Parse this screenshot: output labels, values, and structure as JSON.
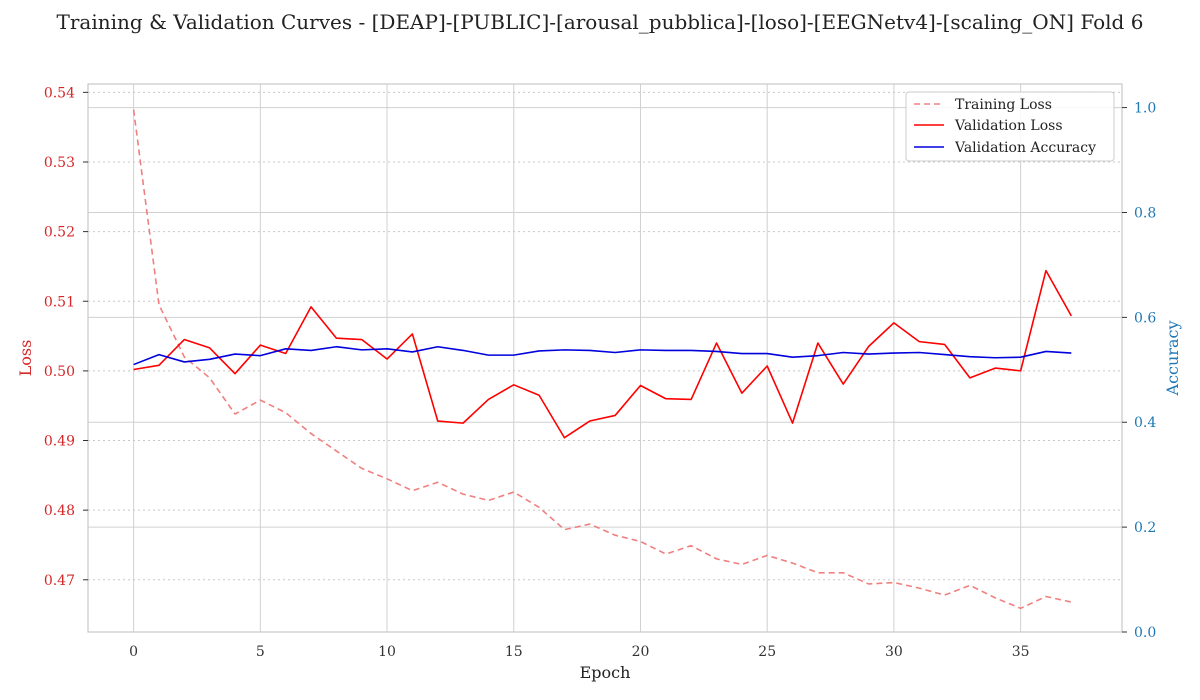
{
  "chart_data": {
    "type": "line",
    "title": "Training & Validation Curves - [DEAP]-[PUBLIC]-[arousal_pubblica]-[loso]-[EEGNetv4]-[scaling_ON] Fold 6",
    "xlabel": "Epoch",
    "ylabel_left": "Loss",
    "ylabel_right": "Accuracy",
    "xlim": [
      -1.8,
      39
    ],
    "ylim_left": [
      0.4625,
      0.5412
    ],
    "ylim_right": [
      0.0,
      1.045
    ],
    "x_ticks": [
      0,
      5,
      10,
      15,
      20,
      25,
      30,
      35
    ],
    "y_left_ticks": [
      0.47,
      0.48,
      0.49,
      0.5,
      0.51,
      0.52,
      0.53,
      0.54
    ],
    "y_left_tick_labels": [
      "0.47",
      "0.48",
      "0.49",
      "0.50",
      "0.51",
      "0.52",
      "0.53",
      "0.54"
    ],
    "y_right_ticks": [
      0.0,
      0.2,
      0.4,
      0.6,
      0.8,
      1.0
    ],
    "y_right_tick_labels": [
      "0.0",
      "0.2",
      "0.4",
      "0.6",
      "0.8",
      "1.0"
    ],
    "grid": true,
    "legend_position": "top-right",
    "x": [
      0,
      1,
      2,
      3,
      4,
      5,
      6,
      7,
      8,
      9,
      10,
      11,
      12,
      13,
      14,
      15,
      16,
      17,
      18,
      19,
      20,
      21,
      22,
      23,
      24,
      25,
      26,
      27,
      28,
      29,
      30,
      31,
      32,
      33,
      34,
      35,
      36,
      37
    ],
    "series": [
      {
        "name": "Training Loss",
        "axis": "left",
        "color": "#f08080",
        "style": "dashed",
        "values": [
          0.5375,
          0.5095,
          0.502,
          0.499,
          0.4938,
          0.4958,
          0.494,
          0.491,
          0.4885,
          0.486,
          0.4845,
          0.4828,
          0.484,
          0.4823,
          0.4814,
          0.4826,
          0.4804,
          0.4772,
          0.478,
          0.4764,
          0.4755,
          0.4737,
          0.4749,
          0.473,
          0.4722,
          0.4735,
          0.4724,
          0.471,
          0.471,
          0.4694,
          0.4696,
          0.4688,
          0.4678,
          0.4692,
          0.4674,
          0.4659,
          0.4676,
          0.4668
        ]
      },
      {
        "name": "Validation Loss",
        "axis": "left",
        "color": "#ff0000",
        "style": "solid",
        "values": [
          0.5002,
          0.5008,
          0.5045,
          0.5033,
          0.4996,
          0.5037,
          0.5025,
          0.5092,
          0.5047,
          0.5045,
          0.5017,
          0.5053,
          0.4928,
          0.4925,
          0.4959,
          0.498,
          0.4965,
          0.4904,
          0.4928,
          0.4936,
          0.4979,
          0.496,
          0.4959,
          0.504,
          0.4968,
          0.5007,
          0.4925,
          0.504,
          0.4981,
          0.5035,
          0.5069,
          0.5042,
          0.5038,
          0.499,
          0.5004,
          0.5,
          0.5144,
          0.5079
        ]
      },
      {
        "name": "Validation Accuracy",
        "axis": "right",
        "color": "#0000dd",
        "style": "solid",
        "values": [
          0.51,
          0.529,
          0.515,
          0.52,
          0.53,
          0.527,
          0.54,
          0.537,
          0.544,
          0.538,
          0.54,
          0.534,
          0.544,
          0.537,
          0.528,
          0.528,
          0.536,
          0.538,
          0.537,
          0.533,
          0.538,
          0.537,
          0.537,
          0.535,
          0.531,
          0.531,
          0.524,
          0.527,
          0.533,
          0.53,
          0.532,
          0.533,
          0.529,
          0.525,
          0.523,
          0.524,
          0.535,
          0.532
        ]
      }
    ]
  }
}
